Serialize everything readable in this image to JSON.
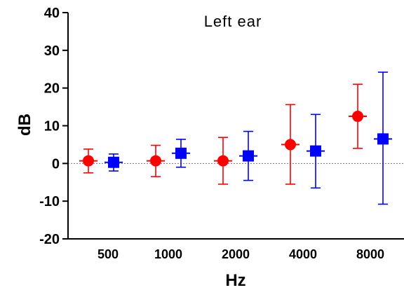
{
  "chart_data": {
    "type": "scatter",
    "title": "Left ear",
    "xlabel": "Hz",
    "ylabel": "dB",
    "categories": [
      "500",
      "1000",
      "2000",
      "4000",
      "8000"
    ],
    "ylim": [
      -20,
      40
    ],
    "yticks": [
      "40",
      "30",
      "20",
      "10",
      "0",
      "-10",
      "-20"
    ],
    "ytick_values": [
      40,
      30,
      20,
      10,
      0,
      -10,
      -20
    ],
    "reference_line": 0,
    "grid": false,
    "series": [
      {
        "marker": "circle",
        "color": "#ff0000",
        "values": [
          0.7,
          0.7,
          0.7,
          5.0,
          12.5
        ],
        "err_low": [
          -2.5,
          -3.5,
          -5.5,
          -5.5,
          4.0
        ],
        "err_high": [
          3.8,
          4.8,
          6.9,
          15.6,
          21.0
        ]
      },
      {
        "marker": "square",
        "color": "#0000ff",
        "values": [
          0.3,
          2.7,
          2.0,
          3.3,
          6.5
        ],
        "err_low": [
          -2.0,
          -1.0,
          -4.5,
          -6.5,
          -10.8
        ],
        "err_high": [
          2.5,
          6.4,
          8.5,
          13.0,
          24.2
        ]
      }
    ]
  }
}
